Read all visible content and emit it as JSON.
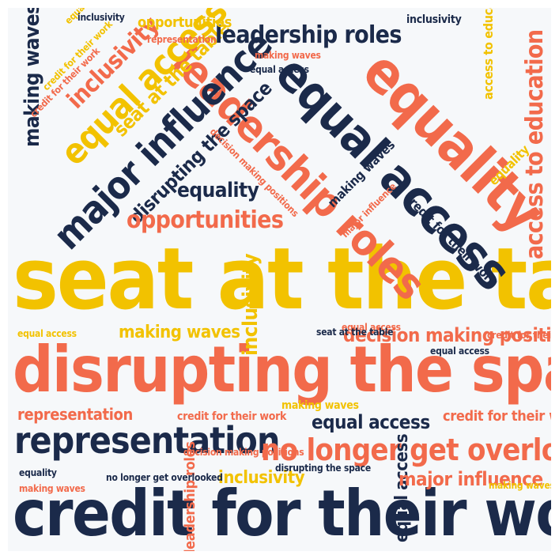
{
  "palette": {
    "navy": "#1b2a4a",
    "orange": "#f26a4b",
    "yellow": "#f2c200",
    "background": "#f6f8fa"
  },
  "words": {
    "seat_at_the_table": "seat at the table",
    "disrupting_the_space": "disrupting the space",
    "credit_for_their_work": "credit for their work",
    "representation": "representation",
    "no_longer_get_overlooked": "no longer get overlooked",
    "equality": "equality",
    "equal_access": "equal access",
    "leadership_roles": "leadership roles",
    "major_influence": "major influence",
    "access_to_education": "access to education",
    "opportunities": "opportunities",
    "inclusivity": "inclusivity",
    "making_waves": "making waves",
    "decision_making_positions": "decision making positions"
  }
}
